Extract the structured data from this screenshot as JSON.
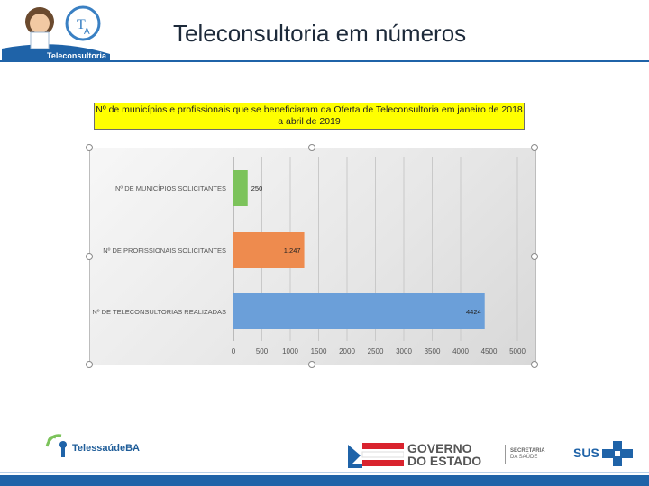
{
  "header": {
    "title": "Teleconsultoria em números",
    "logo_label": "Teleconsultoria"
  },
  "chart_data": {
    "type": "bar",
    "orientation": "horizontal",
    "title_line1": "Nº de municípios e profissionais que se beneficiaram da Oferta de Teleconsultoria em janeiro de 2018",
    "title_line2": "a abril de 2019",
    "categories": [
      "Nº DE MUNICÍPIOS SOLICITANTES",
      "Nº DE PROFISSIONAIS SOLICITANTES",
      "Nº DE TELECONSULTORIAS REALIZADAS"
    ],
    "values": [
      250,
      1247,
      4424
    ],
    "value_labels": [
      "250",
      "1.247",
      "4424"
    ],
    "colors": [
      "#7cc35b",
      "#ee8b4e",
      "#6b9fd9"
    ],
    "xticks": [
      "0",
      "500",
      "1000",
      "1500",
      "2000",
      "2500",
      "3000",
      "3500",
      "4000",
      "4500",
      "5000"
    ],
    "xlim": [
      0,
      5000
    ],
    "grid": true
  },
  "footer": {
    "left_logo_text": "TelessaúdeBA",
    "gov_line1": "GOVERNO",
    "gov_line2": "DO ESTADO",
    "sec_line1": "SECRETARIA",
    "sec_line2": "DA SAÚDE",
    "sus_text": "SUS"
  }
}
